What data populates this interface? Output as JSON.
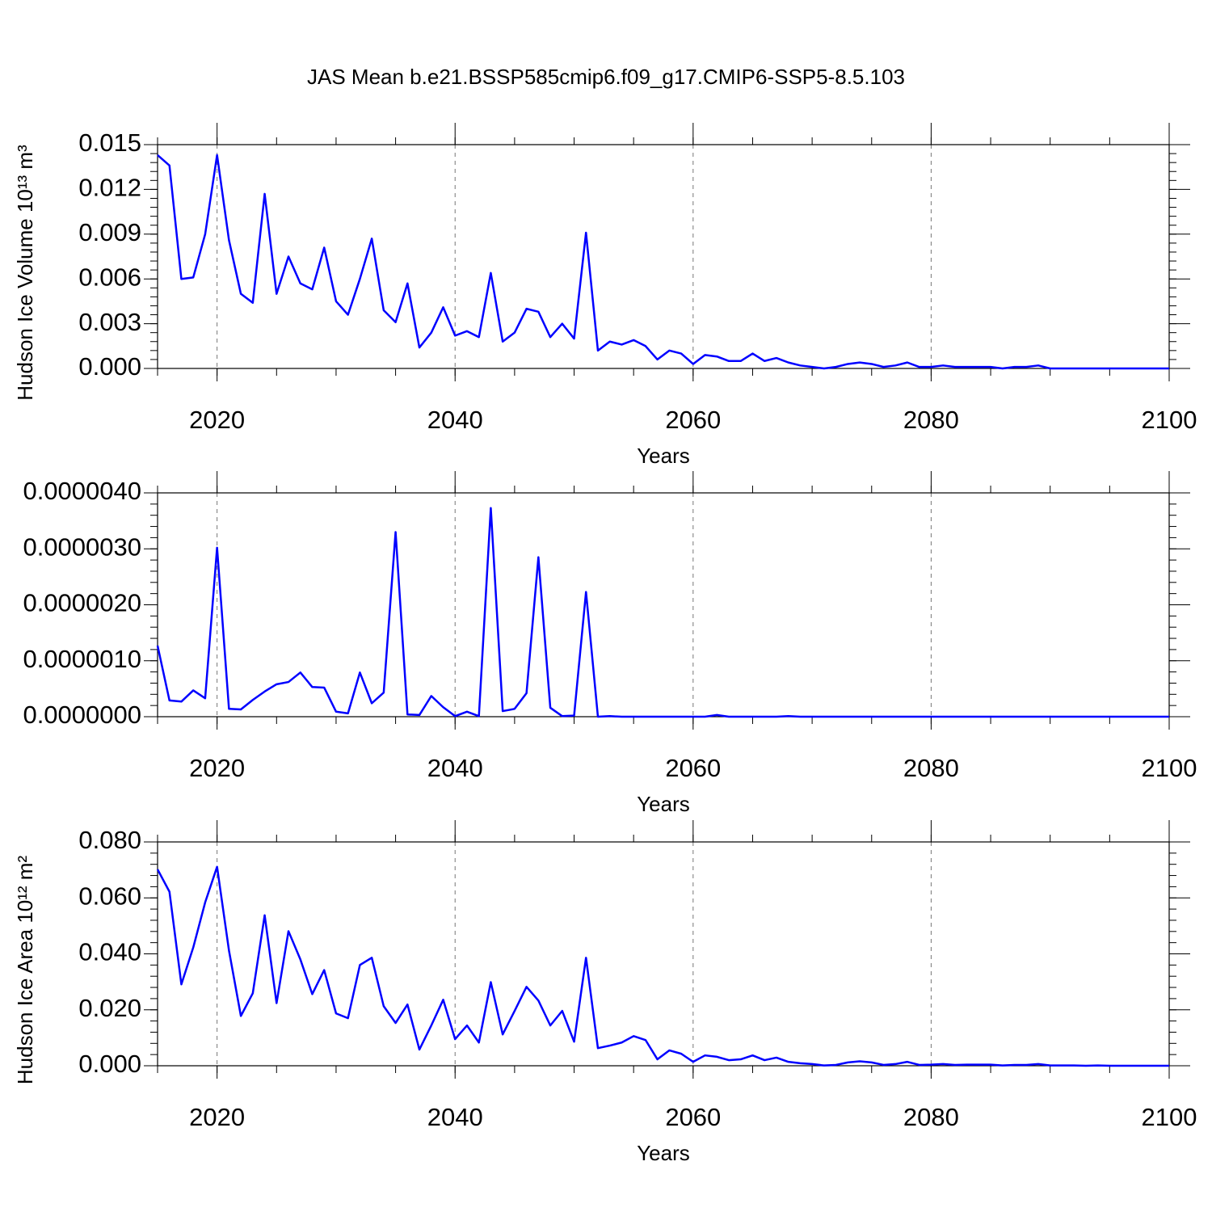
{
  "chart_data": [
    {
      "type": "line",
      "title": "JAS Mean b.e21.BSSP585cmip6.f09_g17.CMIP6-SSP5-8.5.103",
      "xlabel": "Years",
      "ylabel": "Hudson Ice Volume 10¹³ m³",
      "color": "#0000ff",
      "grid": true,
      "x": [
        2015,
        2016,
        2017,
        2018,
        2019,
        2020,
        2021,
        2022,
        2023,
        2024,
        2025,
        2026,
        2027,
        2028,
        2029,
        2030,
        2031,
        2032,
        2033,
        2034,
        2035,
        2036,
        2037,
        2038,
        2039,
        2040,
        2041,
        2042,
        2043,
        2044,
        2045,
        2046,
        2047,
        2048,
        2049,
        2050,
        2051,
        2052,
        2053,
        2054,
        2055,
        2056,
        2057,
        2058,
        2059,
        2060,
        2061,
        2062,
        2063,
        2064,
        2065,
        2066,
        2067,
        2068,
        2069,
        2070,
        2071,
        2072,
        2073,
        2074,
        2075,
        2076,
        2077,
        2078,
        2079,
        2080,
        2081,
        2082,
        2083,
        2084,
        2085,
        2086,
        2087,
        2088,
        2089,
        2090,
        2091,
        2092,
        2093,
        2094,
        2095,
        2096,
        2097,
        2098,
        2099,
        2100
      ],
      "values": [
        0.0143,
        0.0136,
        0.006,
        0.0061,
        0.009,
        0.0143,
        0.0086,
        0.005,
        0.0044,
        0.0117,
        0.005,
        0.0075,
        0.0057,
        0.0053,
        0.0081,
        0.0045,
        0.0036,
        0.006,
        0.0087,
        0.0039,
        0.0031,
        0.0057,
        0.0014,
        0.0024,
        0.0041,
        0.0022,
        0.0025,
        0.0021,
        0.0064,
        0.0018,
        0.0024,
        0.004,
        0.0038,
        0.0021,
        0.003,
        0.002,
        0.0091,
        0.0012,
        0.0018,
        0.0016,
        0.0019,
        0.0015,
        0.0006,
        0.0012,
        0.001,
        0.0003,
        0.0009,
        0.0008,
        0.0005,
        0.0005,
        0.001,
        0.0005,
        0.0007,
        0.0004,
        0.0002,
        0.0001,
        0.0,
        0.0001,
        0.0003,
        0.0004,
        0.0003,
        0.0001,
        0.0002,
        0.0004,
        0.0001,
        0.0001,
        0.0002,
        0.0001,
        0.0001,
        0.0001,
        0.0001,
        0.0,
        0.0001,
        0.0001,
        0.0002,
        0.0,
        0.0,
        0.0,
        0.0,
        0.0,
        0.0,
        0.0,
        0.0,
        0.0,
        0.0,
        0.0
      ],
      "xlim": [
        2015,
        2100
      ],
      "xticks": [
        2020,
        2040,
        2060,
        2080,
        2100
      ],
      "ylim": [
        0,
        0.015
      ],
      "yticks": [
        {
          "value": 0,
          "label": "0.000"
        },
        0.003,
        0.006,
        0.009,
        0.012,
        0.015
      ]
    },
    {
      "type": "line",
      "xlabel": "Years",
      "color": "#0000ff",
      "grid": true,
      "x": [
        2015,
        2016,
        2017,
        2018,
        2019,
        2020,
        2021,
        2022,
        2023,
        2024,
        2025,
        2026,
        2027,
        2028,
        2029,
        2030,
        2031,
        2032,
        2033,
        2034,
        2035,
        2036,
        2037,
        2038,
        2039,
        2040,
        2041,
        2042,
        2043,
        2044,
        2045,
        2046,
        2047,
        2048,
        2049,
        2050,
        2051,
        2052,
        2053,
        2054,
        2055,
        2056,
        2057,
        2058,
        2059,
        2060,
        2061,
        2062,
        2063,
        2064,
        2065,
        2066,
        2067,
        2068,
        2069,
        2070,
        2071,
        2072,
        2073,
        2074,
        2075,
        2076,
        2077,
        2078,
        2079,
        2080,
        2081,
        2082,
        2083,
        2084,
        2085,
        2086,
        2087,
        2088,
        2089,
        2090,
        2091,
        2092,
        2093,
        2094,
        2095,
        2096,
        2097,
        2098,
        2099,
        2100
      ],
      "values": [
        1.27e-06,
        2.9e-07,
        2.7e-07,
        4.7e-07,
        3.3e-07,
        3.02e-06,
        1.4e-07,
        1.3e-07,
        3e-07,
        4.5e-07,
        5.8e-07,
        6.2e-07,
        7.9e-07,
        5.3e-07,
        5.2e-07,
        9e-08,
        6e-08,
        7.9e-07,
        2.4e-07,
        4.3e-07,
        3.3e-06,
        4e-08,
        3e-08,
        3.7e-07,
        1.7e-07,
        1e-08,
        9e-08,
        1e-08,
        3.73e-06,
        1e-07,
        1.4e-07,
        4.2e-07,
        2.85e-06,
        1.6e-07,
        1e-08,
        2e-08,
        2.23e-06,
        0,
        1e-08,
        0,
        0,
        0,
        0,
        0,
        0,
        0,
        0,
        3e-08,
        0,
        0,
        0,
        0,
        0,
        1e-08,
        0,
        0,
        0,
        0,
        0,
        0,
        0,
        0,
        0,
        0,
        0,
        0,
        0,
        0,
        0,
        0,
        0,
        0,
        0,
        0,
        0,
        0,
        0,
        0,
        0,
        0,
        0,
        0,
        0,
        0,
        0,
        0
      ],
      "xlim": [
        2015,
        2100
      ],
      "xticks": [
        2020,
        2040,
        2060,
        2080,
        2100
      ],
      "ylim": [
        0,
        4e-06
      ],
      "yticks": [
        {
          "value": 0,
          "label": "0.0000000"
        },
        {
          "value": 1e-06,
          "label": "0.0000010"
        },
        {
          "value": 2e-06,
          "label": "0.0000020"
        },
        {
          "value": 3e-06,
          "label": "0.0000030"
        },
        {
          "value": 4e-06,
          "label": "0.0000040"
        }
      ]
    },
    {
      "type": "line",
      "xlabel": "Years",
      "ylabel": "Hudson Ice Area 10¹² m²",
      "color": "#0000ff",
      "grid": true,
      "x": [
        2015,
        2016,
        2017,
        2018,
        2019,
        2020,
        2021,
        2022,
        2023,
        2024,
        2025,
        2026,
        2027,
        2028,
        2029,
        2030,
        2031,
        2032,
        2033,
        2034,
        2035,
        2036,
        2037,
        2038,
        2039,
        2040,
        2041,
        2042,
        2043,
        2044,
        2045,
        2046,
        2047,
        2048,
        2049,
        2050,
        2051,
        2052,
        2053,
        2054,
        2055,
        2056,
        2057,
        2058,
        2059,
        2060,
        2061,
        2062,
        2063,
        2064,
        2065,
        2066,
        2067,
        2068,
        2069,
        2070,
        2071,
        2072,
        2073,
        2074,
        2075,
        2076,
        2077,
        2078,
        2079,
        2080,
        2081,
        2082,
        2083,
        2084,
        2085,
        2086,
        2087,
        2088,
        2089,
        2090,
        2091,
        2092,
        2093,
        2094,
        2095,
        2096,
        2097,
        2098,
        2099,
        2100
      ],
      "values": [
        0.0702,
        0.0622,
        0.0291,
        0.0423,
        0.0584,
        0.0711,
        0.0412,
        0.0178,
        0.0259,
        0.0538,
        0.0224,
        0.0481,
        0.038,
        0.0256,
        0.0342,
        0.0187,
        0.017,
        0.036,
        0.0386,
        0.0213,
        0.0153,
        0.0219,
        0.0058,
        0.0144,
        0.0236,
        0.0095,
        0.0144,
        0.0083,
        0.0299,
        0.0112,
        0.0196,
        0.0282,
        0.0233,
        0.0144,
        0.0196,
        0.0086,
        0.0386,
        0.0063,
        0.0072,
        0.0083,
        0.0106,
        0.0092,
        0.0023,
        0.0055,
        0.0043,
        0.0014,
        0.0037,
        0.0032,
        0.002,
        0.0023,
        0.0037,
        0.002,
        0.0029,
        0.0014,
        0.0009,
        0.0006,
        0.0001,
        0.0003,
        0.0012,
        0.0016,
        0.0012,
        0.0003,
        0.0006,
        0.0014,
        0.0003,
        0.0004,
        0.0006,
        0.0003,
        0.0004,
        0.0004,
        0.0004,
        0.0001,
        0.0003,
        0.0003,
        0.0006,
        0.0001,
        0.0001,
        0.0001,
        0.0,
        0.0001,
        0.0,
        0.0,
        0.0,
        0.0,
        0.0,
        0.0
      ],
      "xlim": [
        2015,
        2100
      ],
      "xticks": [
        2020,
        2040,
        2060,
        2080,
        2100
      ],
      "ylim": [
        0,
        0.08
      ],
      "yticks": [
        {
          "value": 0,
          "label": "0.000"
        },
        {
          "value": 0.02,
          "label": "0.020"
        },
        {
          "value": 0.04,
          "label": "0.040"
        },
        {
          "value": 0.06,
          "label": "0.060"
        },
        {
          "value": 0.08,
          "label": "0.080"
        }
      ]
    }
  ]
}
